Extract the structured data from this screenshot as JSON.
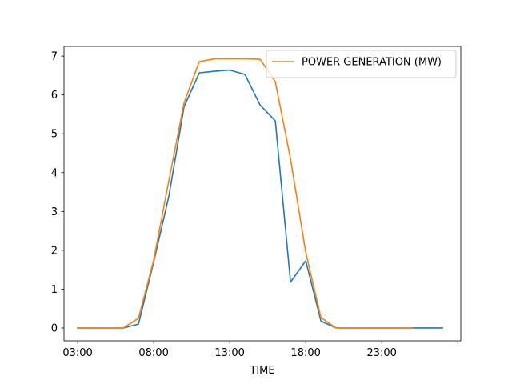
{
  "chart_data": {
    "type": "line",
    "title": "",
    "xlabel": "TIME",
    "ylabel": "",
    "x_hours": [
      3,
      4,
      5,
      6,
      7,
      8,
      9,
      10,
      11,
      12,
      13,
      14,
      15,
      16,
      17,
      18,
      19,
      20,
      21,
      22,
      23,
      24,
      25,
      26,
      27
    ],
    "xlim": [
      2.1,
      28.2
    ],
    "ylim": [
      -0.33,
      7.25
    ],
    "x_ticks": [
      3,
      8,
      13,
      18,
      23,
      28
    ],
    "x_tick_labels": [
      "03:00",
      "08:00",
      "13:00",
      "18:00",
      "23:00",
      ""
    ],
    "y_ticks": [
      0,
      1,
      2,
      3,
      4,
      5,
      6,
      7
    ],
    "y_tick_labels": [
      "0",
      "1",
      "2",
      "3",
      "4",
      "5",
      "6",
      "7"
    ],
    "grid": false,
    "legend_position": "top-right",
    "series": [
      {
        "name": "",
        "color": "#1f77b4",
        "values": [
          0,
          0,
          0,
          0,
          0.1,
          1.7,
          3.4,
          5.7,
          6.57,
          6.61,
          6.64,
          6.53,
          5.74,
          5.33,
          1.18,
          1.73,
          0.18,
          0,
          0,
          0,
          0,
          0,
          0,
          0,
          0
        ]
      },
      {
        "name": "POWER GENERATION (MW)",
        "color": "#ff7f0e",
        "values": [
          0,
          0,
          0,
          0,
          0.25,
          1.75,
          3.8,
          5.8,
          6.86,
          6.93,
          6.93,
          6.93,
          6.92,
          6.34,
          4.35,
          1.95,
          0.27,
          0,
          0,
          0,
          0,
          0,
          0,
          null,
          null
        ]
      }
    ]
  }
}
